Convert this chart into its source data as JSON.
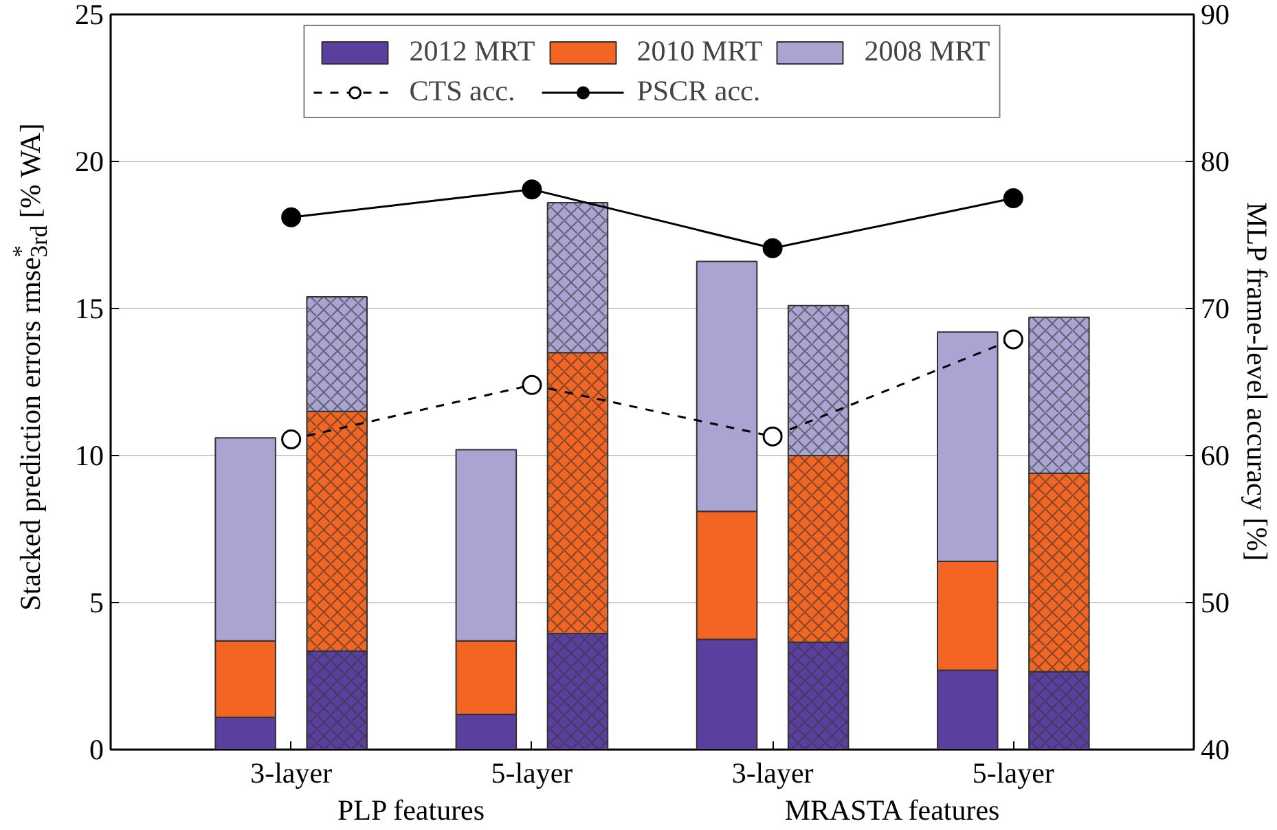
{
  "chart_data": {
    "type": "bar",
    "ylabel": "Stacked prediction errors rmse$^{*}$$_{3rd}$ [% WA]",
    "y2label": "MLP frame-level accuracy [%]",
    "categories": [
      "3-layer",
      "5-layer",
      "3-layer",
      "5-layer"
    ],
    "series": [
      {
        "name": "2012 MRT",
        "color": "#5b3f9e",
        "values": [
          1.1,
          1.2,
          3.75,
          2.7
        ],
        "base": [
          0,
          0,
          0,
          0
        ]
      },
      {
        "name": "2010 MRT",
        "color": "#f26522",
        "values": [
          2.6,
          2.5,
          4.35,
          3.7
        ],
        "base": [
          1.1,
          1.2,
          3.75,
          2.7
        ]
      },
      {
        "name": "2008 MRT",
        "color": "#a9a4d1",
        "values": [
          6.9,
          6.5,
          8.5,
          7.8
        ],
        "base": [
          3.7,
          3.7,
          8.1,
          6.4
        ]
      },
      {
        "color": "#5b3f9e",
        "values": [
          3.35,
          3.95,
          3.65,
          2.65
        ],
        "base": [
          0,
          0,
          0,
          0
        ]
      },
      {
        "color": "#f26522",
        "values": [
          8.15,
          9.55,
          6.35,
          6.75
        ],
        "base": [
          3.35,
          3.95,
          3.65,
          2.65
        ]
      },
      {
        "color": "#a9a4d1",
        "values": [
          3.9,
          5.1,
          5.1,
          5.3
        ],
        "base": [
          11.5,
          13.5,
          10.0,
          9.4
        ]
      },
      {
        "name": "CTS acc.",
        "type": "line",
        "axis": "y2",
        "color": "#000000",
        "line_style": "dashed",
        "values": [
          61.1,
          64.8,
          61.3,
          67.9
        ]
      },
      {
        "name": "PSCR acc.",
        "type": "line",
        "axis": "y2",
        "color": "#000000",
        "line_style": "solid",
        "values": [
          76.2,
          78.1,
          74.1,
          77.5
        ]
      }
    ],
    "ylim": [
      0,
      25
    ],
    "yticks": [
      0,
      5,
      10,
      15,
      20,
      25
    ],
    "y2lim": [
      40,
      90
    ],
    "y2ticks": [
      40,
      50,
      60,
      70,
      80,
      90
    ],
    "annotations": [
      "PLP features",
      "MRASTA features"
    ],
    "grid": "y",
    "legend": "top",
    "marker": "circle"
  }
}
